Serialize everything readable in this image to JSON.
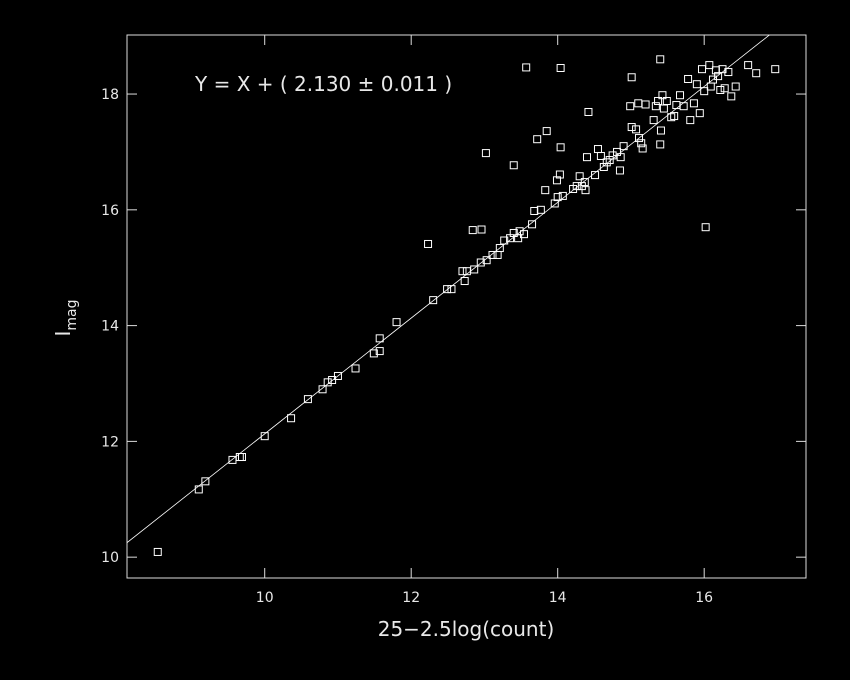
{
  "chart_data": {
    "type": "scatter",
    "xlabel": "25−2.5log(count)",
    "ylabel": "I",
    "ylabel_subscript": "mag",
    "annotation": "Y = X + ( 2.130 ± 0.011 )",
    "fit": {
      "slope": 1,
      "intercept": 2.13
    },
    "xlim": [
      8.12,
      17.39
    ],
    "ylim": [
      9.64,
      19.02
    ],
    "xticks": [
      10,
      12,
      14,
      16
    ],
    "yticks": [
      10,
      12,
      14,
      16,
      18
    ],
    "color": "#ffffff",
    "x": [
      8.54,
      9.1,
      9.19,
      9.56,
      9.66,
      9.69,
      10.0,
      10.36,
      10.59,
      10.79,
      10.86,
      10.92,
      11.0,
      11.24,
      11.49,
      11.57,
      11.57,
      11.8,
      12.23,
      12.3,
      12.49,
      12.55,
      12.73,
      12.7,
      12.76,
      12.86,
      12.84,
      12.96,
      12.95,
      13.03,
      13.02,
      13.11,
      13.18,
      13.21,
      13.27,
      13.35,
      13.4,
      13.46,
      13.48,
      13.54,
      13.4,
      13.57,
      13.65,
      13.68,
      13.72,
      13.77,
      13.83,
      13.85,
      13.96,
      14.0,
      13.99,
      14.03,
      14.04,
      14.04,
      14.07,
      14.21,
      14.26,
      14.3,
      14.33,
      14.37,
      14.38,
      14.4,
      14.42,
      14.51,
      14.55,
      14.59,
      14.63,
      14.67,
      14.71,
      14.75,
      14.81,
      14.85,
      14.86,
      14.9,
      14.99,
      15.01,
      15.01,
      15.07,
      15.1,
      15.11,
      15.14,
      15.16,
      15.2,
      15.31,
      15.34,
      15.37,
      15.4,
      15.4,
      15.41,
      15.43,
      15.45,
      15.49,
      15.55,
      15.59,
      15.62,
      15.67,
      15.72,
      15.78,
      15.81,
      15.86,
      15.9,
      15.94,
      15.97,
      16.0,
      16.02,
      16.07,
      16.09,
      16.12,
      16.16,
      16.19,
      16.22,
      16.25,
      16.28,
      16.33,
      16.37,
      16.43,
      16.6,
      16.71,
      16.97
    ],
    "values": [
      10.09,
      11.17,
      11.31,
      11.68,
      11.73,
      11.73,
      12.09,
      12.4,
      12.73,
      12.9,
      13.02,
      13.06,
      13.13,
      13.26,
      13.52,
      13.56,
      13.78,
      14.06,
      15.41,
      14.44,
      14.63,
      14.63,
      14.77,
      14.94,
      14.94,
      14.97,
      15.65,
      15.66,
      15.09,
      15.13,
      16.98,
      15.22,
      15.22,
      15.34,
      15.47,
      15.51,
      15.6,
      15.51,
      15.63,
      15.58,
      16.77,
      18.46,
      15.75,
      15.98,
      17.22,
      16.0,
      16.34,
      17.36,
      16.11,
      16.22,
      16.51,
      16.61,
      17.08,
      18.45,
      16.24,
      16.36,
      16.41,
      16.58,
      16.41,
      16.48,
      16.34,
      16.91,
      17.69,
      16.6,
      17.05,
      16.93,
      16.74,
      16.82,
      16.86,
      16.94,
      17.0,
      16.68,
      16.91,
      17.1,
      17.79,
      18.29,
      17.43,
      17.39,
      17.84,
      17.24,
      17.15,
      17.06,
      17.82,
      17.55,
      17.79,
      17.88,
      18.6,
      17.13,
      17.37,
      17.98,
      17.75,
      17.88,
      17.6,
      17.62,
      17.81,
      17.98,
      17.79,
      18.26,
      17.55,
      17.84,
      18.17,
      17.67,
      18.43,
      18.05,
      15.7,
      18.5,
      18.13,
      18.25,
      18.41,
      18.31,
      18.07,
      18.43,
      18.1,
      18.38,
      17.96,
      18.13,
      18.5,
      18.36,
      18.43
    ]
  }
}
